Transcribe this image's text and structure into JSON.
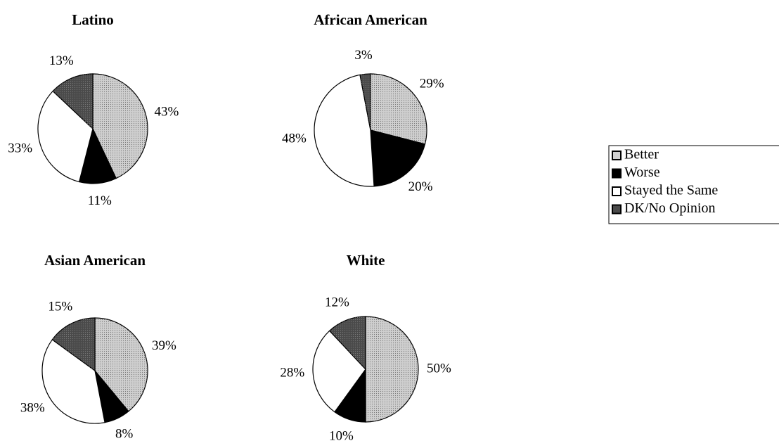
{
  "chart_data": [
    {
      "type": "pie",
      "title": "Latino",
      "values": [
        43,
        11,
        33,
        13
      ],
      "value_labels": [
        "43%",
        "11%",
        "33%",
        "13%"
      ]
    },
    {
      "type": "pie",
      "title": "African American",
      "values": [
        29,
        20,
        48,
        3
      ],
      "value_labels": [
        "29%",
        "20%",
        "48%",
        "3%"
      ]
    },
    {
      "type": "pie",
      "title": "Asian American",
      "values": [
        39,
        8,
        38,
        15
      ],
      "value_labels": [
        "39%",
        "8%",
        "38%",
        "15%"
      ]
    },
    {
      "type": "pie",
      "title": "White",
      "values": [
        50,
        10,
        28,
        12
      ],
      "value_labels": [
        "50%",
        "10%",
        "28%",
        "12%"
      ]
    }
  ],
  "legend": {
    "categories": [
      "Better",
      "Worse",
      "Stayed the Same",
      "DK/No Opinion"
    ],
    "colors": [
      "#cfcfcf",
      "#000000",
      "#ffffff",
      "#4a4a4a"
    ]
  }
}
